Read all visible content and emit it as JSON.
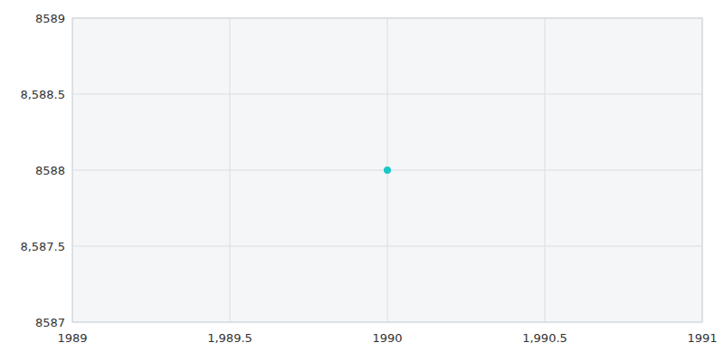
{
  "chart_data": {
    "type": "scatter",
    "x": [
      1990
    ],
    "values": [
      8588
    ],
    "color": "#17c8c8",
    "marker": "circle",
    "xlim": [
      1989,
      1991
    ],
    "ylim": [
      8587,
      8589
    ],
    "xticks": [
      1989,
      {
        "value": 1989.5,
        "label": "1,989.5"
      },
      1990,
      {
        "value": 1990.5,
        "label": "1,990.5"
      },
      1991
    ],
    "yticks": [
      8587,
      {
        "value": 8587.5,
        "label": "8,587.5"
      },
      8588,
      {
        "value": 8588.5,
        "label": "8,588.5"
      },
      8589
    ],
    "grid": true
  }
}
